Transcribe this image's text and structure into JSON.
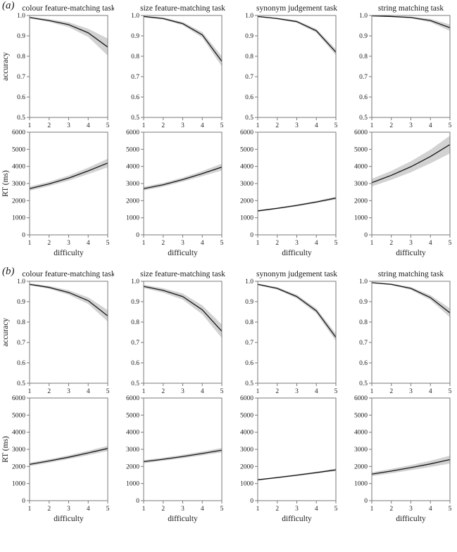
{
  "figure": {
    "accuracy_axis_label": "accuracy",
    "rt_axis_label": "RT (ms)",
    "x_axis_label": "difficulty"
  },
  "chart_data": {
    "type": "line",
    "x": [
      1,
      2,
      3,
      4,
      5
    ],
    "xlabel": "difficulty",
    "grid": "off",
    "legend": "none",
    "band_meaning": "shaded confidence band around mean curve",
    "accuracy_axis": {
      "label": "accuracy",
      "ylim": [
        0.5,
        1.0
      ],
      "ticks": [
        0.5,
        0.6,
        0.7,
        0.8,
        0.9,
        1.0
      ]
    },
    "rt_axis": {
      "label": "RT (ms)",
      "ylim": [
        0,
        6000
      ],
      "ticks": [
        0,
        1000,
        2000,
        3000,
        4000,
        5000,
        6000
      ]
    },
    "colors": {
      "line": "#151515",
      "band": "#d2d2d2",
      "frame": "#7a7a7a",
      "text": "#1a1a1a"
    },
    "panels": [
      {
        "label": "(a)",
        "tasks": [
          {
            "title": "colour feature-matching task",
            "accuracy": {
              "mean": [
                0.99,
                0.975,
                0.955,
                0.915,
                0.845
              ],
              "ci": [
                0.004,
                0.007,
                0.012,
                0.02,
                0.042
              ]
            },
            "rt": {
              "mean": [
                2700,
                2980,
                3320,
                3740,
                4200
              ],
              "ci": [
                120,
                130,
                150,
                190,
                250
              ]
            }
          },
          {
            "title": "size feature-matching task",
            "accuracy": {
              "mean": [
                0.995,
                0.985,
                0.96,
                0.905,
                0.775
              ],
              "ci": [
                0.003,
                0.005,
                0.008,
                0.013,
                0.025
              ]
            },
            "rt": {
              "mean": [
                2700,
                2930,
                3230,
                3580,
                3960
              ],
              "ci": [
                110,
                110,
                120,
                150,
                200
              ]
            }
          },
          {
            "title": "synonym judgement task",
            "accuracy": {
              "mean": [
                0.995,
                0.985,
                0.97,
                0.925,
                0.82
              ],
              "ci": [
                0.002,
                0.004,
                0.006,
                0.009,
                0.015
              ]
            },
            "rt": {
              "mean": [
                1400,
                1550,
                1720,
                1920,
                2150
              ],
              "ci": [
                50,
                50,
                55,
                65,
                80
              ]
            }
          },
          {
            "title": "string matching task",
            "accuracy": {
              "mean": [
                0.998,
                0.995,
                0.99,
                0.975,
                0.94
              ],
              "ci": [
                0.002,
                0.002,
                0.004,
                0.008,
                0.016
              ]
            },
            "rt": {
              "mean": [
                3050,
                3480,
                3980,
                4580,
                5280
              ],
              "ci": [
                220,
                260,
                320,
                400,
                520
              ]
            }
          }
        ]
      },
      {
        "label": "(b)",
        "tasks": [
          {
            "title": "colour feature-matching task",
            "accuracy": {
              "mean": [
                0.985,
                0.97,
                0.945,
                0.905,
                0.83
              ],
              "ci": [
                0.005,
                0.007,
                0.011,
                0.016,
                0.028
              ]
            },
            "rt": {
              "mean": [
                2120,
                2320,
                2540,
                2790,
                3050
              ],
              "ci": [
                100,
                100,
                110,
                130,
                150
              ]
            }
          },
          {
            "title": "size feature-matching task",
            "accuracy": {
              "mean": [
                0.975,
                0.955,
                0.925,
                0.86,
                0.755
              ],
              "ci": [
                0.008,
                0.011,
                0.015,
                0.022,
                0.033
              ]
            },
            "rt": {
              "mean": [
                2280,
                2420,
                2580,
                2760,
                2950
              ],
              "ci": [
                90,
                90,
                100,
                110,
                130
              ]
            }
          },
          {
            "title": "synonym judgement task",
            "accuracy": {
              "mean": [
                0.985,
                0.965,
                0.925,
                0.855,
                0.725
              ],
              "ci": [
                0.004,
                0.006,
                0.009,
                0.012,
                0.018
              ]
            },
            "rt": {
              "mean": [
                1220,
                1350,
                1490,
                1640,
                1800
              ],
              "ci": [
                45,
                45,
                50,
                60,
                75
              ]
            }
          },
          {
            "title": "string matching task",
            "accuracy": {
              "mean": [
                0.993,
                0.985,
                0.965,
                0.92,
                0.845
              ],
              "ci": [
                0.003,
                0.004,
                0.007,
                0.012,
                0.022
              ]
            },
            "rt": {
              "mean": [
                1550,
                1730,
                1930,
                2150,
                2400
              ],
              "ci": [
                110,
                130,
                150,
                180,
                230
              ]
            }
          }
        ]
      }
    ]
  }
}
